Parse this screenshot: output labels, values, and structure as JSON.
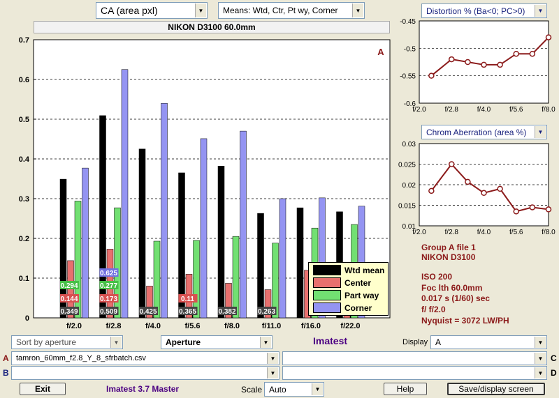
{
  "top": {
    "measure_select": "CA (area pxl)",
    "means_select": "Means: Wtd, Ctr, Pt wy, Corner",
    "title": "NIKON D3100    60.0mm",
    "distortion_select": "Distortion %  (Ba<0; PC>0)",
    "chrom_select": "Chrom Aberration  (area %)"
  },
  "chart_data": [
    {
      "type": "bar",
      "title": "NIKON D3100    60.0mm",
      "categories": [
        "f/2.0",
        "f/2.8",
        "f/4.0",
        "f/5.6",
        "f/8.0",
        "f/11.0",
        "f/16.0",
        "f/22.0"
      ],
      "series": [
        {
          "name": "Wtd mean",
          "color": "#000000",
          "values": [
            0.349,
            0.509,
            0.425,
            0.365,
            0.382,
            0.263,
            0.277,
            0.267
          ]
        },
        {
          "name": "Center",
          "color": "#e8706e",
          "values": [
            0.144,
            0.173,
            0.08,
            0.11,
            0.087,
            0.071,
            0.12,
            0.09
          ]
        },
        {
          "name": "Part way",
          "color": "#72e072",
          "values": [
            0.294,
            0.277,
            0.193,
            0.195,
            0.205,
            0.188,
            0.226,
            0.235
          ]
        },
        {
          "name": "Corner",
          "color": "#9494f2",
          "values": [
            0.377,
            0.625,
            0.54,
            0.451,
            0.47,
            0.3,
            0.302,
            0.281
          ]
        }
      ],
      "data_labels": [
        {
          "series": 0,
          "category": 0,
          "text": "0.349"
        },
        {
          "series": 0,
          "category": 1,
          "text": "0.509"
        },
        {
          "series": 0,
          "category": 2,
          "text": "0.425"
        },
        {
          "series": 0,
          "category": 3,
          "text": "0.365"
        },
        {
          "series": 0,
          "category": 4,
          "text": "0.382"
        },
        {
          "series": 0,
          "category": 5,
          "text": "0.263"
        },
        {
          "series": 1,
          "category": 0,
          "text": "0.144"
        },
        {
          "series": 1,
          "category": 1,
          "text": "0.173"
        },
        {
          "series": 1,
          "category": 3,
          "text": "0.11"
        },
        {
          "series": 2,
          "category": 0,
          "text": "0.294"
        },
        {
          "series": 2,
          "category": 1,
          "text": "0.277"
        },
        {
          "series": 3,
          "category": 1,
          "text": "0.625"
        }
      ],
      "yticks": [
        "0",
        "0.1",
        "0.2",
        "0.3",
        "0.4",
        "0.5",
        "0.6",
        "0.7"
      ],
      "ylim": [
        0,
        0.7
      ],
      "annotation": "A",
      "grid": true,
      "legend": "bottom-right"
    },
    {
      "type": "line",
      "categories": [
        "f/2.0",
        "f/2.8",
        "f/4.0",
        "f/5.6",
        "f/8.0"
      ],
      "x": [
        2.3,
        2.8,
        3.2,
        3.6,
        4.0,
        4.4,
        4.8,
        5.2
      ],
      "values": [
        -0.55,
        -0.52,
        -0.525,
        -0.53,
        -0.53,
        -0.51,
        -0.51,
        -0.48
      ],
      "yticks": [
        "-0.45",
        "-0.5",
        "-0.55",
        "-0.6"
      ],
      "ylim": [
        -0.6,
        -0.45
      ],
      "color": "#8b1a1a",
      "grid": true
    },
    {
      "type": "line",
      "categories": [
        "f/2.0",
        "f/2.8",
        "f/4.0",
        "f/5.6",
        "f/8.0"
      ],
      "x": [
        2.3,
        2.8,
        3.2,
        3.6,
        4.0,
        4.4,
        4.8,
        5.2
      ],
      "values": [
        0.0185,
        0.025,
        0.0207,
        0.018,
        0.019,
        0.0135,
        0.0145,
        0.014
      ],
      "yticks": [
        "0.03",
        "0.025",
        "0.02",
        "0.015",
        "0.01"
      ],
      "ylim": [
        0.01,
        0.03
      ],
      "color": "#8b1a1a",
      "grid": true
    }
  ],
  "info": {
    "group": "Group A file 1",
    "camera": "NIKON D3100",
    "iso": "ISO  200",
    "focal": "Foc lth  60.0mm",
    "exposure": "0.017 s  (1/60)  sec",
    "aperture": "f/  f/2.0",
    "nyquist": "Nyquist = 3072 LW/PH"
  },
  "controls": {
    "sort_select": "Sort by aperture",
    "aperture_label": "Aperture",
    "brand": "Imatest",
    "display_label": "Display",
    "display_select": "A",
    "row_a_label": "A",
    "row_a_file": "tamron_60mm_f2.8_Y_8_sfrbatch.csv",
    "row_b_label": "B",
    "row_b_file": "",
    "row_c_label": "C",
    "row_c_file": "",
    "row_d_label": "D",
    "row_d_file": ""
  },
  "bottom": {
    "exit": "Exit",
    "version": "Imatest 3.7 Master",
    "scale_label": "Scale",
    "scale_select": "Auto",
    "help": "Help",
    "save": "Save/display screen"
  }
}
